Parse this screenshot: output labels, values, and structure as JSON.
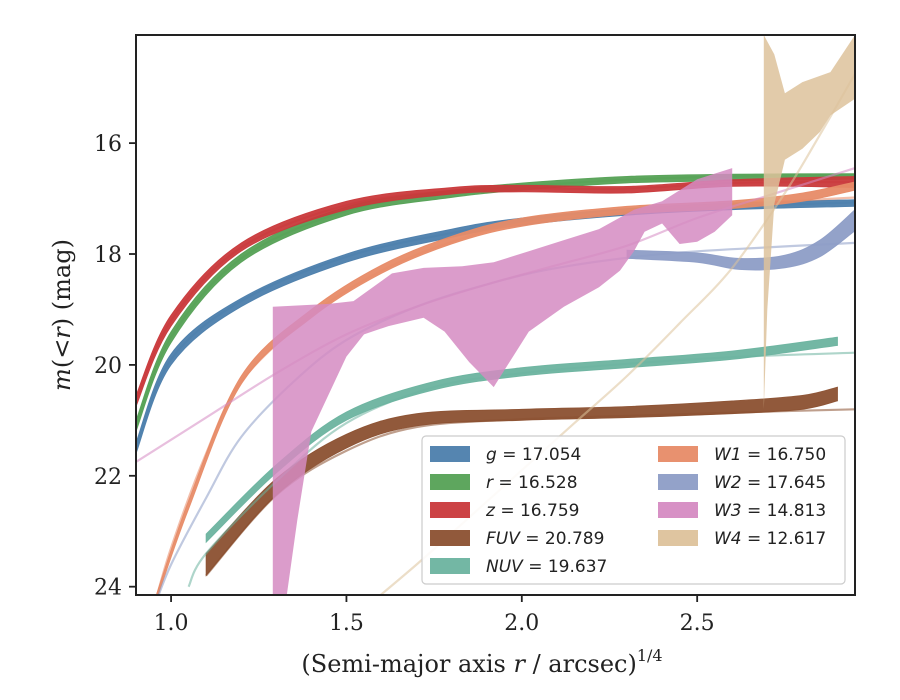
{
  "chart_data": {
    "type": "line",
    "xlabel_main": "(Semi-major axis ",
    "xlabel_r": "r",
    "xlabel_rest": " / arcsec)",
    "xlabel_sup": "1/4",
    "ylabel_m": "m",
    "ylabel_open": "(<",
    "ylabel_r": "r",
    "ylabel_close": ") (mag)",
    "xlim": [
      0.9,
      2.95
    ],
    "ylim": [
      24.15,
      14.05
    ],
    "y_inverted": true,
    "x_ticks": [
      1.0,
      1.5,
      2.0,
      2.5
    ],
    "x_tick_labels": [
      "1.0",
      "1.5",
      "2.0",
      "2.5"
    ],
    "y_ticks": [
      16,
      18,
      20,
      22,
      24
    ],
    "y_tick_labels": [
      "16",
      "18",
      "20",
      "22",
      "24"
    ],
    "grid": false,
    "legend_position": "lower-right",
    "series": [
      {
        "key": "g",
        "name": "g",
        "value_text": "= 17.054",
        "color": "#4c7eac",
        "band": [
          [
            0.9,
            21.6,
            21.4
          ],
          [
            1.0,
            20.0,
            19.8
          ],
          [
            1.2,
            18.95,
            18.8
          ],
          [
            1.5,
            18.15,
            18.0
          ],
          [
            1.8,
            17.7,
            17.55
          ],
          [
            2.0,
            17.48,
            17.35
          ],
          [
            2.3,
            17.3,
            17.18
          ],
          [
            2.6,
            17.2,
            17.08
          ],
          [
            2.95,
            17.14,
            17.02
          ]
        ],
        "ext": [
          [
            0.9,
            21.5
          ],
          [
            1.0,
            19.9
          ],
          [
            1.2,
            18.85
          ],
          [
            1.5,
            18.05
          ],
          [
            1.8,
            17.62
          ],
          [
            2.0,
            17.42
          ],
          [
            2.3,
            17.24
          ],
          [
            2.6,
            17.14
          ],
          [
            2.95,
            17.07
          ]
        ]
      },
      {
        "key": "r",
        "name": "r",
        "value_text": "= 16.528",
        "color": "#55a155",
        "band": [
          [
            0.9,
            21.2,
            21.0
          ],
          [
            1.0,
            19.6,
            19.4
          ],
          [
            1.2,
            18.15,
            18.0
          ],
          [
            1.5,
            17.3,
            17.15
          ],
          [
            1.8,
            16.98,
            16.85
          ],
          [
            2.0,
            16.85,
            16.72
          ],
          [
            2.3,
            16.72,
            16.6
          ],
          [
            2.6,
            16.68,
            16.56
          ],
          [
            2.95,
            16.65,
            16.55
          ]
        ],
        "ext": [
          [
            0.9,
            21.1
          ],
          [
            1.0,
            19.5
          ],
          [
            1.2,
            18.08
          ],
          [
            1.5,
            17.22
          ],
          [
            1.8,
            16.9
          ],
          [
            2.0,
            16.78
          ],
          [
            2.3,
            16.66
          ],
          [
            2.6,
            16.6
          ],
          [
            2.95,
            16.57
          ]
        ]
      },
      {
        "key": "z",
        "name": "z",
        "value_text": "= 16.759",
        "color": "#c9393b",
        "band": [
          [
            0.9,
            20.75,
            20.55
          ],
          [
            1.0,
            19.3,
            19.1
          ],
          [
            1.2,
            17.95,
            17.8
          ],
          [
            1.5,
            17.2,
            17.05
          ],
          [
            1.8,
            16.92,
            16.8
          ],
          [
            2.0,
            16.88,
            16.76
          ],
          [
            2.3,
            16.9,
            16.78
          ],
          [
            2.6,
            16.78,
            16.66
          ],
          [
            2.95,
            16.8,
            16.6
          ]
        ],
        "ext": [
          [
            0.9,
            20.65
          ],
          [
            1.0,
            19.2
          ],
          [
            1.2,
            17.88
          ],
          [
            1.5,
            17.12
          ],
          [
            1.8,
            16.86
          ],
          [
            2.0,
            16.82
          ],
          [
            2.3,
            16.82
          ],
          [
            2.6,
            16.72
          ],
          [
            2.95,
            16.7
          ]
        ]
      },
      {
        "key": "FUV",
        "name": "FUV",
        "value_text": "= 20.789",
        "color": "#8b5030",
        "band": [
          [
            1.1,
            23.8,
            23.4
          ],
          [
            1.3,
            22.35,
            22.05
          ],
          [
            1.5,
            21.5,
            21.25
          ],
          [
            1.7,
            21.1,
            20.88
          ],
          [
            2.0,
            21.0,
            20.8
          ],
          [
            2.3,
            20.95,
            20.75
          ],
          [
            2.6,
            20.88,
            20.65
          ],
          [
            2.8,
            20.8,
            20.55
          ],
          [
            2.9,
            20.65,
            20.4
          ]
        ],
        "ext": [
          [
            1.1,
            23.8
          ],
          [
            1.3,
            22.35
          ],
          [
            1.5,
            21.55
          ],
          [
            1.7,
            21.12
          ],
          [
            2.0,
            20.98
          ],
          [
            2.3,
            20.92
          ],
          [
            2.6,
            20.86
          ],
          [
            2.95,
            20.8
          ]
        ]
      },
      {
        "key": "NUV",
        "name": "NUV",
        "value_text": "= 19.637",
        "color": "#6cb39f",
        "band": [
          [
            1.1,
            23.2,
            23.05
          ],
          [
            1.3,
            21.95,
            21.8
          ],
          [
            1.5,
            21.0,
            20.85
          ],
          [
            1.75,
            20.45,
            20.3
          ],
          [
            2.0,
            20.2,
            20.05
          ],
          [
            2.3,
            20.05,
            19.9
          ],
          [
            2.6,
            19.9,
            19.75
          ],
          [
            2.9,
            19.65,
            19.5
          ]
        ],
        "ext": [
          [
            1.05,
            24.0
          ],
          [
            1.1,
            23.4
          ],
          [
            1.3,
            22.1
          ],
          [
            1.5,
            21.05
          ],
          [
            1.75,
            20.4
          ],
          [
            2.0,
            20.15
          ],
          [
            2.3,
            19.98
          ],
          [
            2.6,
            19.86
          ],
          [
            2.95,
            19.78
          ]
        ]
      },
      {
        "key": "W1",
        "name": "W1",
        "value_text": "= 16.750",
        "color": "#e78b67",
        "band": [
          [
            0.95,
            24.4,
            24.3
          ],
          [
            1.05,
            22.6,
            22.45
          ],
          [
            1.2,
            20.35,
            20.2
          ],
          [
            1.4,
            19.15,
            19.0
          ],
          [
            1.6,
            18.35,
            18.2
          ],
          [
            1.8,
            17.82,
            17.68
          ],
          [
            2.0,
            17.5,
            17.35
          ],
          [
            2.3,
            17.28,
            17.14
          ],
          [
            2.6,
            17.18,
            17.04
          ],
          [
            2.8,
            17.05,
            16.9
          ],
          [
            2.95,
            16.85,
            16.7
          ]
        ],
        "ext": [
          [
            0.95,
            24.4
          ],
          [
            1.0,
            23.3
          ],
          [
            1.1,
            21.6
          ],
          [
            1.2,
            20.3
          ],
          [
            1.4,
            19.1
          ],
          [
            1.6,
            18.3
          ],
          [
            1.8,
            17.78
          ],
          [
            2.0,
            17.45
          ],
          [
            2.3,
            17.22
          ],
          [
            2.6,
            17.1
          ],
          [
            2.95,
            16.98
          ]
        ]
      },
      {
        "key": "W2",
        "name": "W2",
        "value_text": "= 17.645",
        "color": "#8d9dc6",
        "band": [
          [
            2.3,
            18.08,
            17.93
          ],
          [
            2.5,
            18.15,
            17.98
          ],
          [
            2.62,
            18.28,
            18.08
          ],
          [
            2.75,
            18.25,
            18.02
          ],
          [
            2.85,
            18.05,
            17.75
          ],
          [
            2.95,
            17.58,
            17.2
          ]
        ],
        "ext": [
          [
            0.95,
            24.4
          ],
          [
            1.0,
            23.6
          ],
          [
            1.1,
            22.4
          ],
          [
            1.2,
            21.3
          ],
          [
            1.35,
            20.3
          ],
          [
            1.5,
            19.55
          ],
          [
            1.7,
            18.95
          ],
          [
            1.9,
            18.55
          ],
          [
            2.1,
            18.25
          ],
          [
            2.4,
            18.0
          ],
          [
            2.7,
            17.88
          ],
          [
            2.95,
            17.8
          ]
        ]
      },
      {
        "key": "W3",
        "name": "W3",
        "value_text": "= 14.813",
        "color": "#d58bc2",
        "polygon": [
          [
            1.29,
            24.15
          ],
          [
            1.29,
            18.95
          ],
          [
            1.45,
            18.9
          ],
          [
            1.52,
            18.85
          ],
          [
            1.63,
            18.35
          ],
          [
            1.72,
            18.25
          ],
          [
            1.83,
            18.22
          ],
          [
            1.92,
            18.15
          ],
          [
            2.02,
            17.95
          ],
          [
            2.12,
            17.75
          ],
          [
            2.22,
            17.55
          ],
          [
            2.32,
            17.2
          ],
          [
            2.4,
            17.05
          ],
          [
            2.5,
            16.65
          ],
          [
            2.55,
            16.55
          ],
          [
            2.6,
            16.45
          ],
          [
            2.6,
            17.3
          ],
          [
            2.55,
            17.6
          ],
          [
            2.5,
            17.78
          ],
          [
            2.45,
            17.82
          ],
          [
            2.4,
            17.45
          ],
          [
            2.35,
            17.6
          ],
          [
            2.32,
            17.95
          ],
          [
            2.28,
            18.3
          ],
          [
            2.22,
            18.6
          ],
          [
            2.12,
            18.95
          ],
          [
            2.02,
            19.4
          ],
          [
            1.92,
            20.4
          ],
          [
            1.85,
            19.95
          ],
          [
            1.78,
            19.4
          ],
          [
            1.72,
            19.15
          ],
          [
            1.62,
            19.3
          ],
          [
            1.55,
            19.45
          ],
          [
            1.5,
            19.85
          ],
          [
            1.4,
            21.2
          ],
          [
            1.36,
            22.8
          ],
          [
            1.33,
            24.15
          ]
        ],
        "ext": [
          [
            0.9,
            21.75
          ],
          [
            1.1,
            20.95
          ],
          [
            1.3,
            20.15
          ],
          [
            1.5,
            19.45
          ],
          [
            1.7,
            18.95
          ],
          [
            1.9,
            18.55
          ],
          [
            2.1,
            18.2
          ],
          [
            2.3,
            17.85
          ],
          [
            2.5,
            17.35
          ],
          [
            2.7,
            16.95
          ],
          [
            2.95,
            16.45
          ]
        ]
      },
      {
        "key": "W4",
        "name": "W4",
        "value_text": "= 12.617",
        "color": "#ddc29b",
        "polygon": [
          [
            2.69,
            20.8
          ],
          [
            2.69,
            14.05
          ],
          [
            2.72,
            14.4
          ],
          [
            2.75,
            15.1
          ],
          [
            2.8,
            14.9
          ],
          [
            2.88,
            14.72
          ],
          [
            2.95,
            14.05
          ],
          [
            2.95,
            15.2
          ],
          [
            2.88,
            15.5
          ],
          [
            2.85,
            15.8
          ],
          [
            2.8,
            16.1
          ],
          [
            2.75,
            16.3
          ],
          [
            2.72,
            17.1
          ],
          [
            2.7,
            19.0
          ]
        ],
        "ext": [
          [
            1.55,
            24.4
          ],
          [
            1.7,
            23.6
          ],
          [
            1.85,
            22.75
          ],
          [
            2.0,
            21.9
          ],
          [
            2.15,
            21.05
          ],
          [
            2.3,
            20.2
          ],
          [
            2.45,
            19.25
          ],
          [
            2.6,
            18.25
          ],
          [
            2.75,
            16.9
          ],
          [
            2.85,
            15.85
          ],
          [
            2.95,
            14.75
          ]
        ]
      }
    ]
  }
}
